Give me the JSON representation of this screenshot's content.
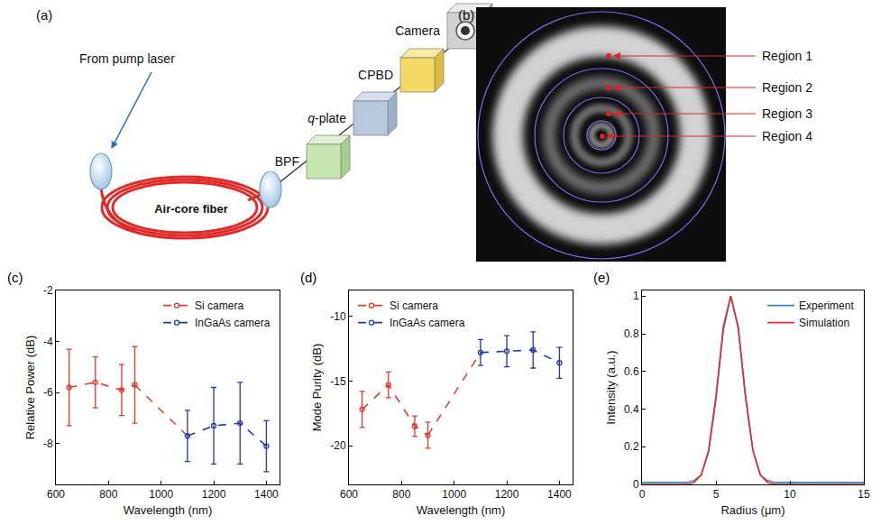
{
  "diagram": {
    "panel": "(a)",
    "source": "From pump laser",
    "fiber": "Air-core fiber",
    "components": [
      "BPF",
      "q-plate",
      "CPBD",
      "Camera"
    ]
  },
  "image": {
    "panel": "(b)",
    "regions": [
      "Region 1",
      "Region 2",
      "Region 3",
      "Region 4"
    ]
  },
  "chart_data": [
    {
      "panel": "(c)",
      "type": "line",
      "x_label": "Wavelength (nm)",
      "y_label": "Relative Power (dB)",
      "xlim": [
        600,
        1450
      ],
      "xticks": [
        600,
        800,
        1000,
        1200,
        1400
      ],
      "ylim": [
        -9.6,
        -2
      ],
      "yticks": [
        -8,
        -6,
        -4,
        -2
      ],
      "grid": false,
      "legend": "upper right",
      "series": [
        {
          "name": "Si camera",
          "color": "#e3382c",
          "marker": "circle-open",
          "line_style": "dash",
          "x": [
            650,
            750,
            850,
            900
          ],
          "values": [
            -5.8,
            -5.6,
            -5.9,
            -5.7
          ],
          "errors": [
            1.5,
            1.0,
            1.0,
            1.5
          ]
        },
        {
          "name": "InGaAs camera",
          "color": "#1f3aa8",
          "marker": "circle-open",
          "line_style": "dash",
          "x": [
            1100,
            1200,
            1300,
            1400
          ],
          "values": [
            -7.7,
            -7.3,
            -7.2,
            -8.1
          ],
          "errors": [
            1.0,
            1.5,
            1.6,
            1.0
          ]
        }
      ]
    },
    {
      "panel": "(d)",
      "type": "line",
      "x_label": "Wavelength (nm)",
      "y_label": "Mode Purity (dB)",
      "xlim": [
        600,
        1450
      ],
      "xticks": [
        600,
        800,
        1000,
        1200,
        1400
      ],
      "ylim": [
        -23,
        -8
      ],
      "yticks": [
        -20,
        -15,
        -10
      ],
      "grid": false,
      "legend": "upper left",
      "series": [
        {
          "name": "Si camera",
          "color": "#e3382c",
          "marker": "circle-open",
          "line_style": "dash",
          "x": [
            650,
            750,
            850,
            900
          ],
          "values": [
            -17.2,
            -15.3,
            -18.5,
            -19.2
          ],
          "errors": [
            1.4,
            1.0,
            0.8,
            1.0
          ]
        },
        {
          "name": "InGaAs camera",
          "color": "#1f3aa8",
          "marker": "circle-open",
          "line_style": "dash",
          "x": [
            1100,
            1200,
            1300,
            1400
          ],
          "values": [
            -12.8,
            -12.7,
            -12.6,
            -13.6
          ],
          "errors": [
            1.0,
            1.2,
            1.4,
            1.2
          ]
        }
      ]
    },
    {
      "panel": "(e)",
      "type": "line",
      "x_label": "Radius (μm)",
      "y_label": "Intensity (a.u.)",
      "xlim": [
        0,
        15
      ],
      "xticks": [
        0,
        5,
        10,
        15
      ],
      "ylim": [
        0,
        1.03
      ],
      "yticks": [
        0,
        0.2,
        0.4,
        0.6,
        0.8,
        1
      ],
      "grid": false,
      "legend": "upper right",
      "series": [
        {
          "name": "Experiment",
          "color": "#3a86c0",
          "line_style": "solid",
          "x": [
            0,
            1,
            2,
            3,
            3.5,
            4,
            4.5,
            5,
            5.5,
            6,
            6.5,
            7,
            7.5,
            8,
            8.5,
            9,
            10,
            11,
            12,
            13,
            14,
            15
          ],
          "values": [
            0.01,
            0.01,
            0.01,
            0.01,
            0.02,
            0.05,
            0.17,
            0.45,
            0.82,
            1.0,
            0.83,
            0.46,
            0.18,
            0.05,
            0.02,
            0.01,
            0.01,
            0.01,
            0.01,
            0.01,
            0.01,
            0.01
          ]
        },
        {
          "name": "Simulation",
          "color": "#e8302a",
          "line_style": "solid",
          "x": [
            0,
            1,
            2,
            3,
            3.5,
            4,
            4.5,
            5,
            5.5,
            6,
            6.5,
            7,
            7.5,
            8,
            8.5,
            9,
            10,
            11,
            12,
            13,
            14,
            15
          ],
          "values": [
            0,
            0,
            0,
            0,
            0.01,
            0.05,
            0.18,
            0.47,
            0.84,
            1.0,
            0.84,
            0.47,
            0.18,
            0.05,
            0.01,
            0,
            0,
            0,
            0,
            0,
            0,
            0
          ]
        }
      ]
    }
  ]
}
